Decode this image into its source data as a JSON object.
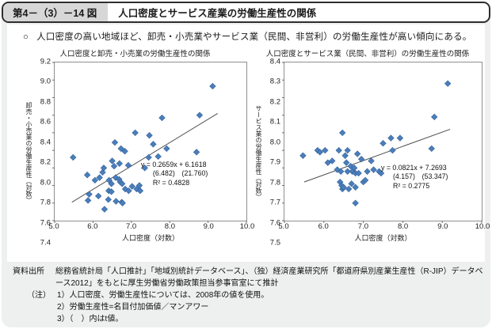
{
  "header": {
    "figure_no": "第4－（3）－14 図",
    "title": "人口密度とサービス産業の労働生産性の関係"
  },
  "lead": {
    "bullet": "○",
    "text": "人口密度の高い地域ほど、卸売・小売業やサービス業（民間、非営利）の労働生産性が高い傾向にある。"
  },
  "colors": {
    "point": "#4a7ebb",
    "point_edge": "#2f5b93",
    "trend": "#4d4d4d",
    "card_bg": "#edf0ee",
    "figno_bg": "#d7d7d7",
    "header_border": "#2e2e2e"
  },
  "chart_data": [
    {
      "type": "scatter",
      "title": "人口密度と卸売・小売業の労働生産性の関係",
      "xlabel": "人口密度（対数）",
      "ylabel": "卸売・小売業の労働生産性（対数）",
      "xlim": [
        5.0,
        10.0
      ],
      "ylim": [
        7.4,
        9.2
      ],
      "xticks": [
        5.0,
        6.0,
        7.0,
        8.0,
        9.0,
        10.0
      ],
      "yticks": [
        7.4,
        7.6,
        7.8,
        8.0,
        8.2,
        8.4,
        8.6,
        8.8,
        9.0,
        9.2
      ],
      "points": [
        [
          5.48,
          8.12
        ],
        [
          5.85,
          7.92
        ],
        [
          5.9,
          7.7
        ],
        [
          5.87,
          7.63
        ],
        [
          6.05,
          7.86
        ],
        [
          6.14,
          7.68
        ],
        [
          6.17,
          7.89
        ],
        [
          6.25,
          7.95
        ],
        [
          6.28,
          8.0
        ],
        [
          6.3,
          7.53
        ],
        [
          6.4,
          7.64
        ],
        [
          6.41,
          7.74
        ],
        [
          6.42,
          7.86
        ],
        [
          6.48,
          7.82
        ],
        [
          6.48,
          7.73
        ],
        [
          6.5,
          8.08
        ],
        [
          6.55,
          8.02
        ],
        [
          6.57,
          8.29
        ],
        [
          6.59,
          7.89
        ],
        [
          6.6,
          7.62
        ],
        [
          6.68,
          7.87
        ],
        [
          6.69,
          8.05
        ],
        [
          6.71,
          7.84
        ],
        [
          6.73,
          8.22
        ],
        [
          6.75,
          7.61
        ],
        [
          6.76,
          7.82
        ],
        [
          6.77,
          7.6
        ],
        [
          6.83,
          8.19
        ],
        [
          6.84,
          7.76
        ],
        [
          6.92,
          8.03
        ],
        [
          6.93,
          7.74
        ],
        [
          7.02,
          7.79
        ],
        [
          7.1,
          8.4
        ],
        [
          7.14,
          7.76
        ],
        [
          7.21,
          7.8
        ],
        [
          7.23,
          7.74
        ],
        [
          7.35,
          8.0
        ],
        [
          7.45,
          8.12
        ],
        [
          7.47,
          8.37
        ],
        [
          7.57,
          8.27
        ],
        [
          7.7,
          8.13
        ],
        [
          7.8,
          8.57
        ],
        [
          7.92,
          8.22
        ],
        [
          8.7,
          8.18
        ],
        [
          8.78,
          8.6
        ],
        [
          9.12,
          8.93
        ]
      ],
      "trend": {
        "x1": 5.45,
        "y1": 7.61,
        "x2": 9.25,
        "y2": 8.62
      },
      "equation": [
        "y = 0.2659x + 6.1618",
        "(6.482)　(21.760)",
        "R² = 0.4828"
      ]
    },
    {
      "type": "scatter",
      "title": "人口密度とサービス業（民間、非営利）の労働生産性の関係",
      "xlabel": "人口密度（対数）",
      "ylabel": "サービス業の労働生産性（対数）",
      "xlim": [
        5.0,
        10.0
      ],
      "ylim": [
        7.5,
        8.4
      ],
      "xticks": [
        5.0,
        6.0,
        7.0,
        8.0,
        9.0,
        10.0
      ],
      "yticks": [
        7.5,
        7.6,
        7.7,
        7.8,
        7.9,
        8.0,
        8.1,
        8.2,
        8.3,
        8.4
      ],
      "points": [
        [
          5.47,
          7.87
        ],
        [
          5.84,
          7.9
        ],
        [
          5.9,
          7.89
        ],
        [
          6.03,
          7.9
        ],
        [
          6.1,
          7.83
        ],
        [
          6.21,
          7.84
        ],
        [
          6.34,
          7.79
        ],
        [
          6.38,
          7.9
        ],
        [
          6.41,
          7.72
        ],
        [
          6.43,
          7.78
        ],
        [
          6.45,
          7.7
        ],
        [
          6.47,
          8.0
        ],
        [
          6.47,
          7.68
        ],
        [
          6.5,
          7.69
        ],
        [
          6.54,
          7.87
        ],
        [
          6.57,
          7.83
        ],
        [
          6.6,
          7.9
        ],
        [
          6.6,
          7.78
        ],
        [
          6.63,
          7.68
        ],
        [
          6.68,
          7.81
        ],
        [
          6.7,
          7.71
        ],
        [
          6.72,
          7.78
        ],
        [
          6.77,
          7.8
        ],
        [
          6.8,
          7.77
        ],
        [
          6.8,
          7.69
        ],
        [
          6.8,
          7.6
        ],
        [
          6.85,
          7.88
        ],
        [
          6.88,
          7.77
        ],
        [
          6.95,
          7.85
        ],
        [
          7.0,
          7.72
        ],
        [
          7.05,
          7.73
        ],
        [
          7.1,
          7.78
        ],
        [
          7.2,
          7.84
        ],
        [
          7.26,
          7.79
        ],
        [
          7.4,
          7.78
        ],
        [
          7.45,
          7.77
        ],
        [
          7.5,
          7.94
        ],
        [
          7.7,
          7.97
        ],
        [
          7.74,
          7.9
        ],
        [
          7.93,
          7.97
        ],
        [
          8.73,
          7.91
        ],
        [
          8.8,
          8.09
        ],
        [
          9.14,
          8.28
        ]
      ],
      "trend": {
        "x1": 5.5,
        "y1": 7.72,
        "x2": 9.2,
        "y2": 8.02
      },
      "equation": [
        "y = 0.0821x + 7.2693",
        "(4.157)　(53.347)",
        "R² = 0.2775"
      ]
    }
  ],
  "footer": {
    "source_label": "資料出所",
    "source_text": "総務省統計局「人口推計」「地域別統計データベース」、（独）経済産業研究所「都道府県別産業生産性（R-JIP）データベース2012」をもとに厚生労働省労働政策担当参事官室にて推計",
    "note_label": "（注）",
    "notes": [
      "1）人口密度、労働生産性については、2008年の値を使用。",
      "2）労働生産性=名目付加価値／マンアワー",
      "3）（　）内はt値。"
    ]
  }
}
